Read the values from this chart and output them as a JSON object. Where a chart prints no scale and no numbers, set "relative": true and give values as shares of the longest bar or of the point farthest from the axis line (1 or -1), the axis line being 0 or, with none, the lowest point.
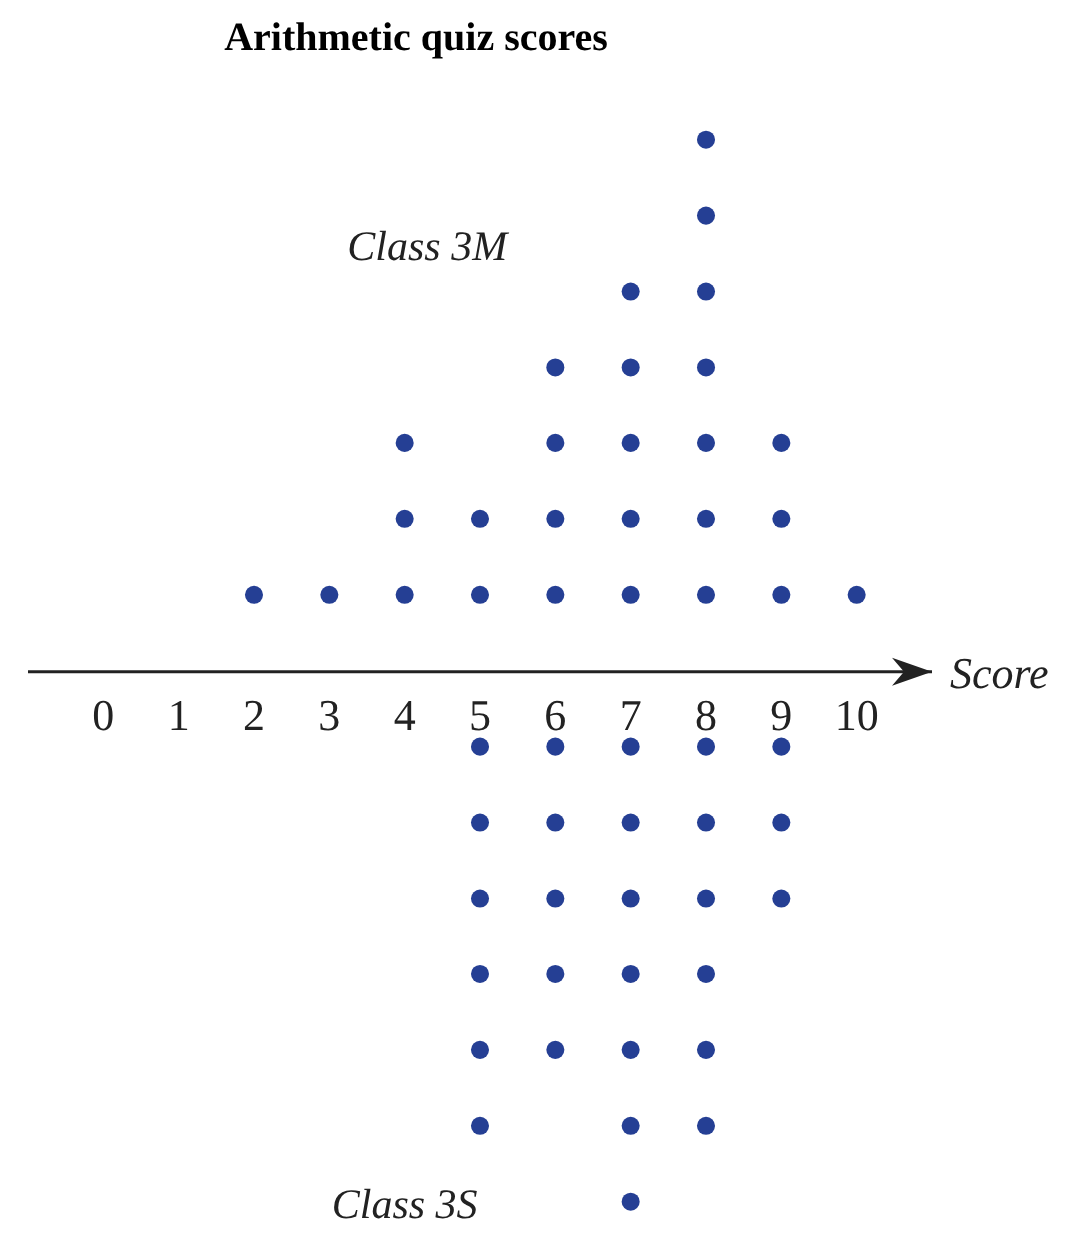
{
  "chart_data": {
    "type": "scatter",
    "title": "Arithmetic quiz scores",
    "xlabel": "Score",
    "xlim": [
      -1,
      11
    ],
    "xticks": [
      0,
      1,
      2,
      3,
      4,
      5,
      6,
      7,
      8,
      9,
      10
    ],
    "relative": true,
    "tick_labels": "x",
    "marker": "circle",
    "series": [
      {
        "name": "Class 3M",
        "color": "#253f94",
        "x": [
          2,
          3,
          4,
          4,
          4,
          5,
          5,
          6,
          6,
          6,
          6,
          7,
          7,
          7,
          7,
          7,
          8,
          8,
          8,
          8,
          8,
          8,
          8,
          9,
          9,
          9,
          10
        ],
        "values": [
          0.143,
          0.143,
          0.143,
          0.286,
          0.429,
          0.143,
          0.286,
          0.143,
          0.286,
          0.429,
          0.571,
          0.143,
          0.286,
          0.429,
          0.571,
          0.714,
          0.143,
          0.286,
          0.429,
          0.571,
          0.714,
          0.857,
          1,
          0.143,
          0.286,
          0.429,
          0.143
        ]
      },
      {
        "name": "Class 3S",
        "color": "#253f94",
        "x": [
          5,
          5,
          5,
          5,
          5,
          5,
          6,
          6,
          6,
          6,
          6,
          7,
          7,
          7,
          7,
          7,
          7,
          7,
          8,
          8,
          8,
          8,
          8,
          8,
          9,
          9,
          9
        ],
        "values": [
          -0.143,
          -0.286,
          -0.429,
          -0.571,
          -0.714,
          -0.857,
          -0.143,
          -0.286,
          -0.429,
          -0.571,
          -0.714,
          -0.143,
          -0.286,
          -0.429,
          -0.571,
          -0.714,
          -0.857,
          -1,
          -0.143,
          -0.286,
          -0.429,
          -0.571,
          -0.714,
          -0.857,
          -0.143,
          -0.286,
          -0.429
        ]
      }
    ]
  }
}
